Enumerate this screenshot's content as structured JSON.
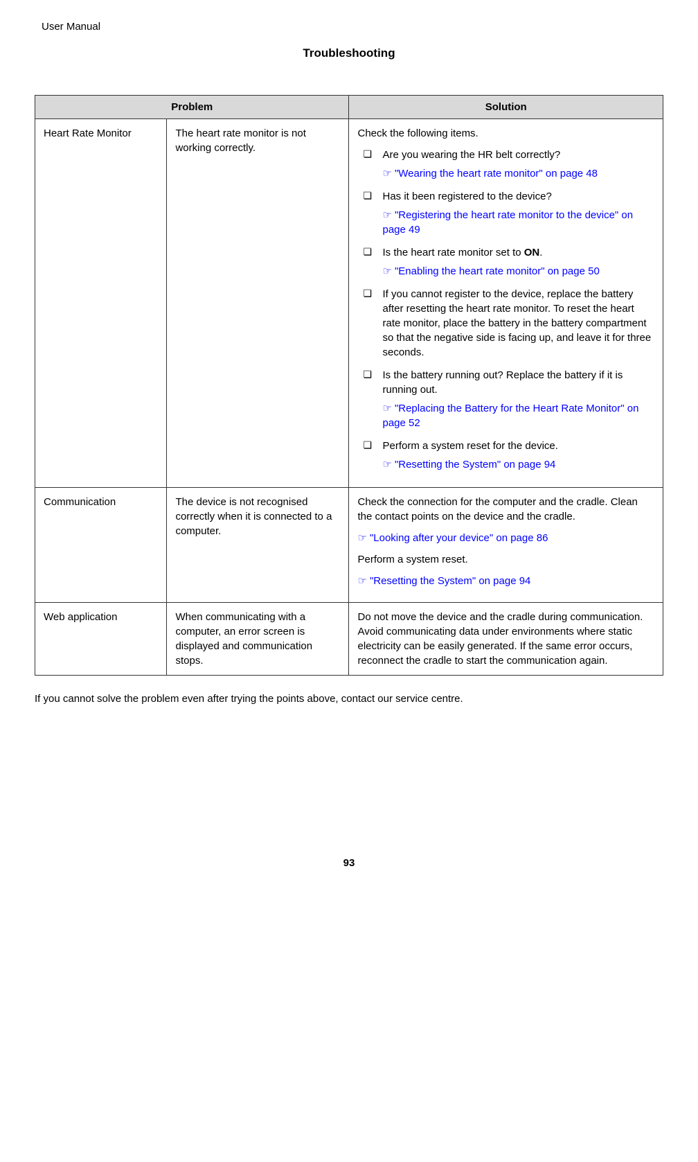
{
  "header": {
    "manual_label": "User Manual",
    "section_title": "Troubleshooting"
  },
  "table": {
    "headers": {
      "problem": "Problem",
      "solution": "Solution"
    },
    "rows": [
      {
        "category": "Heart Rate Monitor",
        "problem": "The heart rate monitor is not working correctly.",
        "solution_intro": "Check the following items.",
        "items": [
          {
            "text": "Are you wearing the HR belt correctly?",
            "link": "\"Wearing the heart rate monitor\" on page 48"
          },
          {
            "text": "Has it been registered to the device?",
            "link": "\"Registering the heart rate monitor to the device\" on page 49"
          },
          {
            "text_pre": "Is the heart rate monitor set to ",
            "bold": "ON",
            "text_post": ".",
            "link": "\"Enabling the heart rate monitor\" on page 50"
          },
          {
            "text": "If you cannot register to the device, replace the battery after resetting the heart rate monitor. To reset the heart rate monitor, place the battery in the battery compartment so that the negative side is facing up, and leave it for three seconds."
          },
          {
            "text": "Is the battery running out? Replace the battery if it is running out.",
            "link": "\"Replacing the Battery for the Heart Rate Monitor\" on page 52"
          },
          {
            "text": "Perform a system reset for the device.",
            "link": "\"Resetting the System\" on page 94"
          }
        ]
      },
      {
        "category": "Communication",
        "problem": "The device is not recognised correctly when it is connected to a computer.",
        "solution_paras": [
          "Check the connection for the computer and the cradle. Clean the contact points on the device and the cradle."
        ],
        "link1": "\"Looking after your device\" on page 86",
        "para2": "Perform a system reset.",
        "link2": "\"Resetting the System\" on page 94"
      },
      {
        "category": "Web application",
        "problem": "When communicating with a computer, an error screen is displayed and communication stops.",
        "solution_text": "Do not move the device and the cradle during communication. Avoid communicating data under environments where static electricity can be easily generated. If the same error occurs, reconnect the cradle to start the communication again."
      }
    ]
  },
  "footer_note": "If you cannot solve the problem even after trying the points above, contact our service centre.",
  "page_number": "93",
  "icons": {
    "hand": "☞"
  }
}
